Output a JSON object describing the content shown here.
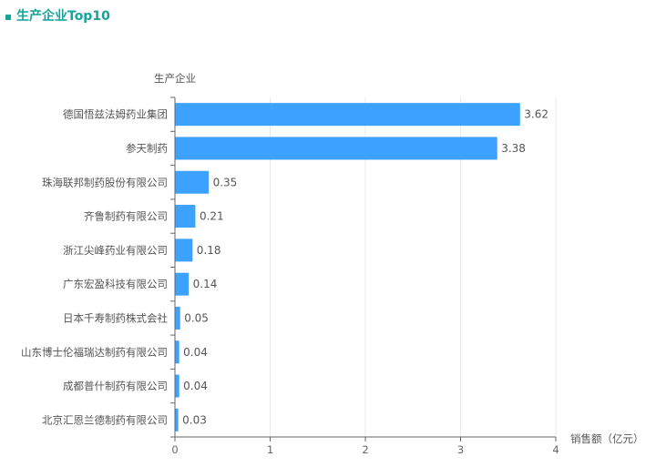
{
  "header": {
    "title": "生产企业Top10"
  },
  "colors": {
    "accent": "#16a39a",
    "bar": "#3da1ff",
    "grid": "#e6e8ee",
    "axis": "#666666"
  },
  "chart_data": {
    "type": "bar",
    "orientation": "horizontal",
    "title": "生产企业Top10",
    "ylabel": "生产企业",
    "xlabel": "销售额（亿元）",
    "categories": [
      "德国悟兹法姆药业集团",
      "参天制药",
      "珠海联邦制药股份有限公司",
      "齐鲁制药有限公司",
      "浙江尖峰药业有限公司",
      "广东宏盈科技有限公司",
      "日本千寿制药株式会社",
      "山东博士伦福瑞达制药有限公司",
      "成都普什制药有限公司",
      "北京汇恩兰德制药有限公司"
    ],
    "values": [
      3.62,
      3.38,
      0.35,
      0.21,
      0.18,
      0.14,
      0.05,
      0.04,
      0.04,
      0.03
    ],
    "value_labels": [
      "3.62",
      "3.38",
      "0.35",
      "0.21",
      "0.18",
      "0.14",
      "0.05",
      "0.04",
      "0.04",
      "0.03"
    ],
    "xlim": [
      0,
      4
    ],
    "x_ticks": [
      "0",
      "1",
      "2",
      "3",
      "4"
    ],
    "grid": true,
    "legend": "none"
  }
}
